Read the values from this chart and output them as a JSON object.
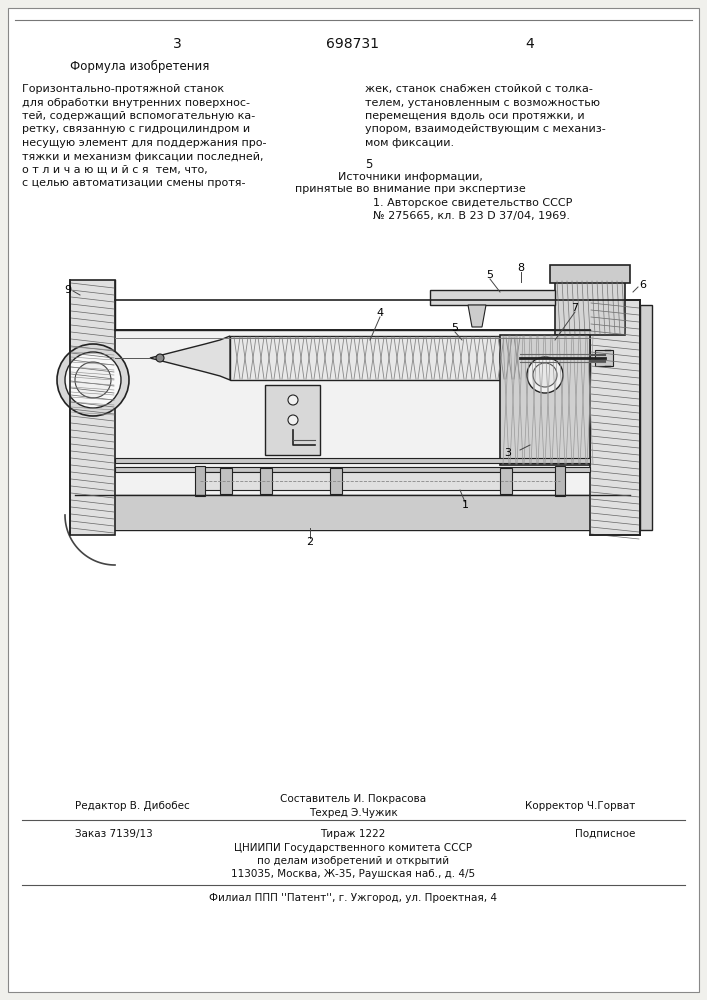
{
  "bg_color": "#f0f0ec",
  "page_color": "#ffffff",
  "border_color": "#333333",
  "top_line_color": "#555555",
  "header_num_left": "3",
  "header_num_center": "698731",
  "header_num_right": "4",
  "col_left_title": "Формула изобретения",
  "col_left_body_lines": [
    "Горизонтально-протяжной станок",
    "для обработки внутренних поверхнос-",
    "тей, содержащий вспомогательную ка-",
    "ретку, связанную с гидроцилиндром и",
    "несущую элемент для поддержания про-",
    "тяжки и механизм фиксации последней,",
    "о т л и ч а ю щ и й с я  тем, что,",
    "с целью автоматизации смены протя-"
  ],
  "col_right_body_lines": [
    "жек, станок снабжен стойкой с толка-",
    "телем, установленным с возможностью",
    "перемещения вдоль оси протяжки, и",
    "упором, взаимодействующим с механиз-",
    "мом фиксации."
  ],
  "col_right_sources_num": "5",
  "col_right_sources_title": "Источники информации,",
  "col_right_sources_sub": "принятые во внимание при экспертизе",
  "col_right_sources_body": [
    "1. Авторское свидетельство СССР",
    "№ 275665, кл. В 23 D 37/04, 1969."
  ],
  "footer_editor": "Редактор В. Дибобес",
  "footer_composer": "Составитель И. Покрасова",
  "footer_tech": "Техред Э.Чужик",
  "footer_corrector": "Корректор Ч.Горват",
  "footer_order": "Заказ 7139/13",
  "footer_circulation": "Тираж 1222",
  "footer_subscription": "Подписное",
  "footer_cnipi": "ЦНИИПИ Государственного комитета СССР",
  "footer_affairs": "по делам изобретений и открытий",
  "footer_address": "113035, Москва, Ж-35, Раушская наб., д. 4/5",
  "footer_filial": "Филиал ППП ''Патент'', г. Ужгород, ул. Проектная, 4"
}
